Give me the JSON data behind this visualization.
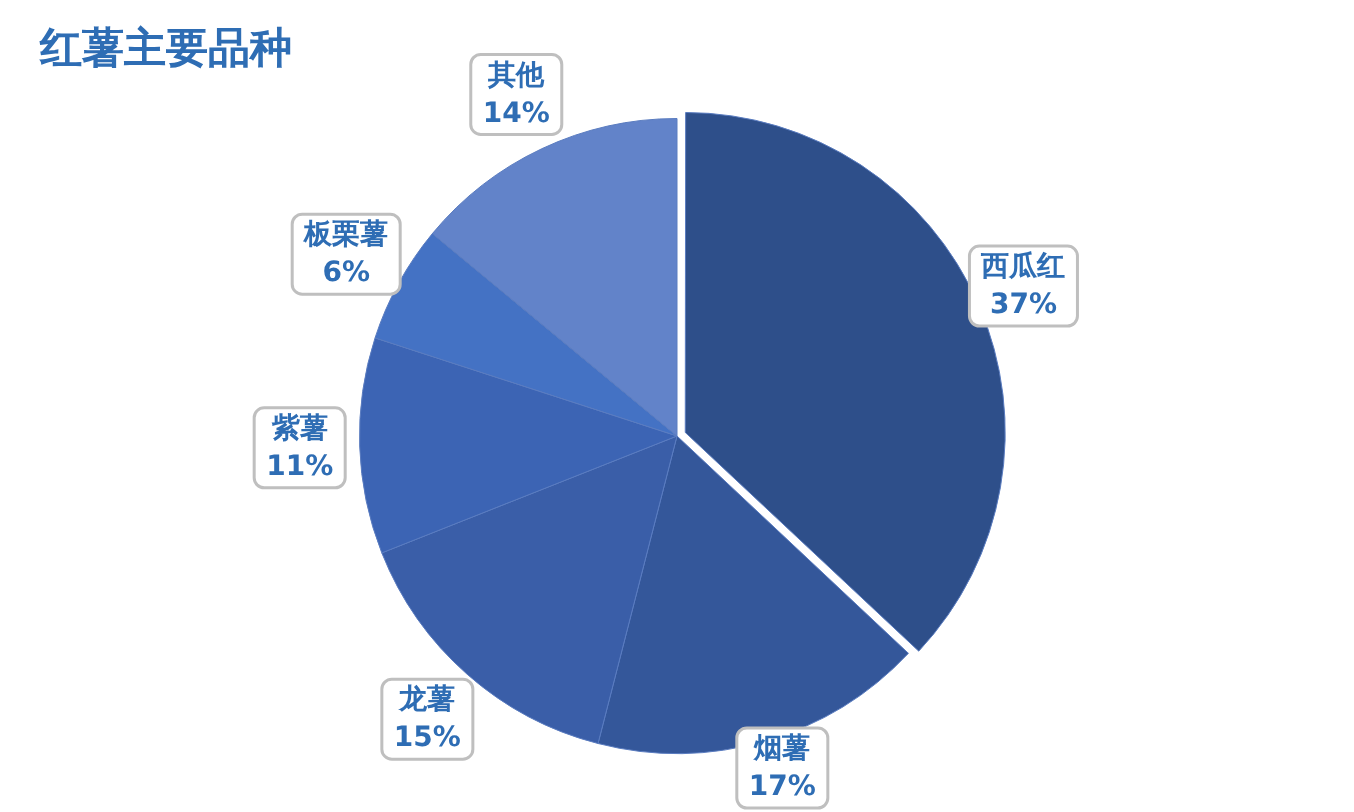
{
  "chart_data": {
    "type": "pie",
    "title": "红薯主要品种",
    "categories": [
      "西瓜红",
      "烟薯",
      "龙薯",
      "紫薯",
      "板栗薯",
      "其他"
    ],
    "values": [
      37,
      17,
      15,
      11,
      6,
      14
    ],
    "value_labels": [
      "37%",
      "17%",
      "15%",
      "11%",
      "6%",
      "14%"
    ],
    "colors": [
      "#2e4f8a",
      "#34579a",
      "#3a5ea8",
      "#3c64b4",
      "#4472c4",
      "#6283c9"
    ],
    "legend": false
  }
}
